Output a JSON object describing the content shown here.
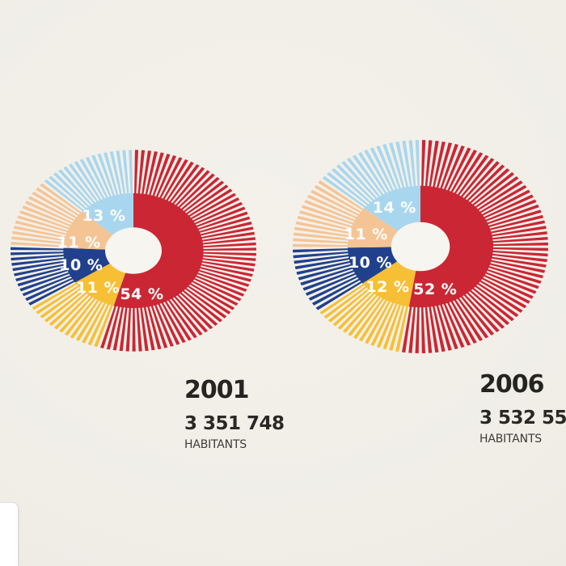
{
  "page": {
    "background_color": "#f0eee7",
    "hole_color": "#f7f5ef"
  },
  "chart_data": [
    {
      "type": "pie",
      "style": "radial-spoke-donut",
      "direction": "clockwise",
      "start_angle": "12-oclock",
      "title": "2001",
      "subtitle": "3 351 748",
      "unit_label": "HABITANTS",
      "segments": [
        {
          "label": "54 %",
          "value": 54,
          "color": "#cb2634"
        },
        {
          "label": "11 %",
          "value": 11,
          "color": "#f7bf35"
        },
        {
          "label": "10 %",
          "value": 10,
          "color": "#21418d"
        },
        {
          "label": "11 %",
          "value": 11,
          "color": "#f5c495"
        },
        {
          "label": "13 %",
          "value": 13,
          "color": "#a8d6ee"
        }
      ]
    },
    {
      "type": "pie",
      "style": "radial-spoke-donut",
      "direction": "clockwise",
      "start_angle": "12-oclock",
      "title": "2006",
      "subtitle": "3 532 55",
      "unit_label": "HABITANTS",
      "segments": [
        {
          "label": "52 %",
          "value": 52,
          "color": "#cb2634"
        },
        {
          "label": "12 %",
          "value": 12,
          "color": "#f7bf35"
        },
        {
          "label": "10 %",
          "value": 10,
          "color": "#21418d"
        },
        {
          "label": "11 %",
          "value": 11,
          "color": "#f5c495"
        },
        {
          "label": "14 %",
          "value": 14,
          "color": "#a8d6ee"
        }
      ]
    }
  ]
}
